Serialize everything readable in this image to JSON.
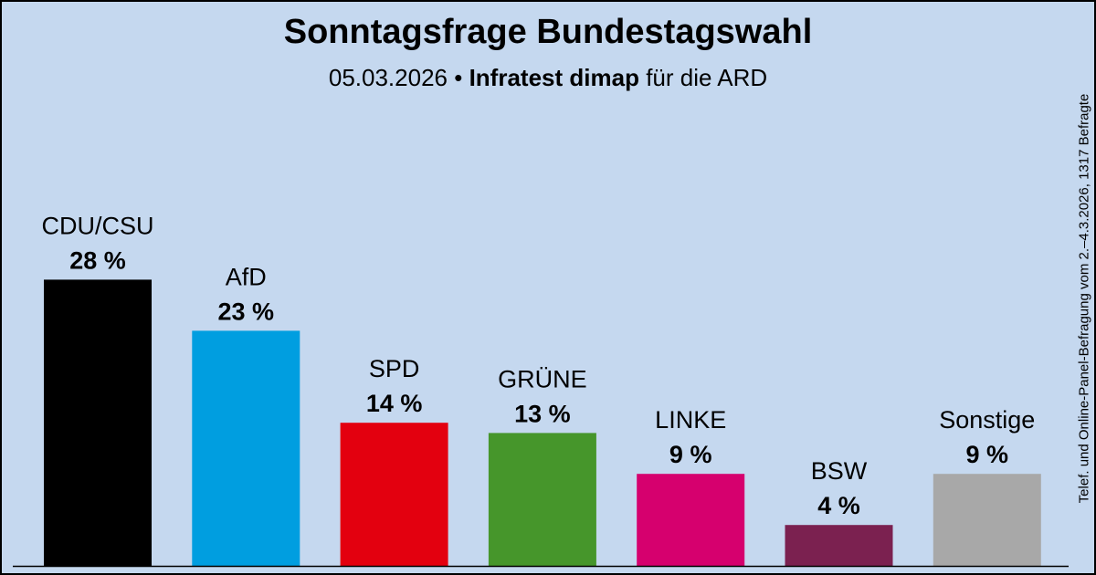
{
  "header": {
    "title": "Sonntagsfrage Bundestagswahl",
    "date": "05.03.2026",
    "bullet": "•",
    "institute": "Infratest dimap",
    "client": "für die ARD"
  },
  "footnote": "Telef. und Online-Panel-Befragung vom 2.–4.3.2026, 1317 Befragte",
  "chart_data": {
    "type": "bar",
    "categories": [
      "CDU/CSU",
      "AfD",
      "SPD",
      "GRÜNE",
      "LINKE",
      "BSW",
      "Sonstige"
    ],
    "values": [
      28,
      23,
      14,
      13,
      9,
      4,
      9
    ],
    "value_labels": [
      "28 %",
      "23 %",
      "14 %",
      "13 %",
      "9 %",
      "4 %",
      "9 %"
    ],
    "colors": [
      "#000000",
      "#009ee0",
      "#e3000f",
      "#46962b",
      "#d6006e",
      "#7b2150",
      "#a8a8a8"
    ],
    "title": "Sonntagsfrage Bundestagswahl",
    "ylim": [
      0,
      30
    ],
    "grid": false,
    "legend": "none"
  }
}
